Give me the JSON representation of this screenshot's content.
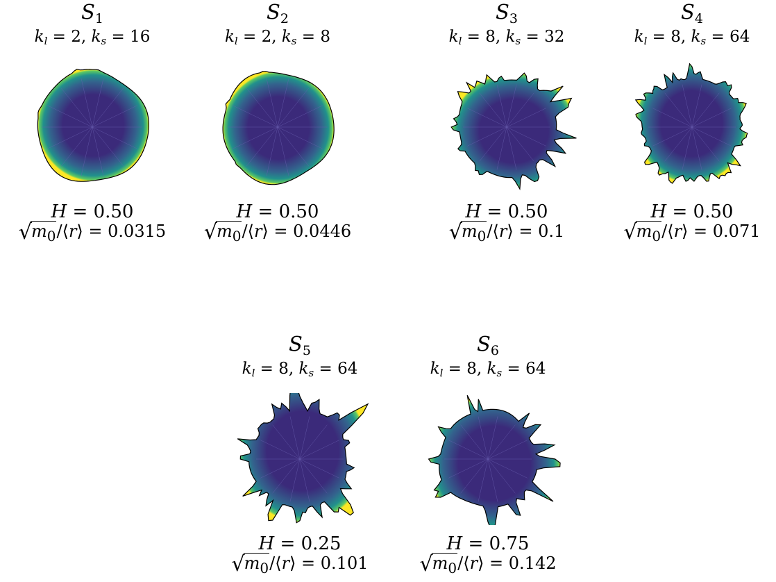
{
  "colors": {
    "center": "#3b2a7a",
    "mid": "#33638d",
    "outer": "#21918c",
    "edge": "#5ec962",
    "rim": "#fde725",
    "outline": "#000000"
  },
  "panels": [
    {
      "name": "S",
      "sub": "1",
      "kl": "2",
      "ks": "16",
      "H": "0.50",
      "ratio": "0.0315",
      "spikes": 3,
      "amp": 0.04,
      "seed": 1
    },
    {
      "name": "S",
      "sub": "2",
      "kl": "2",
      "ks": "8",
      "H": "0.50",
      "ratio": "0.0446",
      "spikes": 3,
      "amp": 0.05,
      "seed": 2
    },
    {
      "name": "S",
      "sub": "3",
      "kl": "8",
      "ks": "32",
      "H": "0.50",
      "ratio": "0.1",
      "spikes": 32,
      "amp": 0.22,
      "seed": 3
    },
    {
      "name": "S",
      "sub": "4",
      "kl": "8",
      "ks": "64",
      "H": "0.50",
      "ratio": "0.071",
      "spikes": 56,
      "amp": 0.15,
      "seed": 4
    },
    {
      "name": "S",
      "sub": "5",
      "kl": "8",
      "ks": "64",
      "H": "0.25",
      "ratio": "0.101",
      "spikes": 40,
      "amp": 0.3,
      "seed": 5
    },
    {
      "name": "S",
      "sub": "6",
      "kl": "8",
      "ks": "64",
      "H": "0.75",
      "ratio": "0.142",
      "spikes": 18,
      "amp": 0.4,
      "seed": 6
    }
  ],
  "labels": {
    "kl_symbol": "k",
    "kl_sub": "l",
    "ks_symbol": "k",
    "ks_sub": "s",
    "H_symbol": "H",
    "ratio_num": "m",
    "ratio_num_sub": "0",
    "ratio_den": "r"
  }
}
